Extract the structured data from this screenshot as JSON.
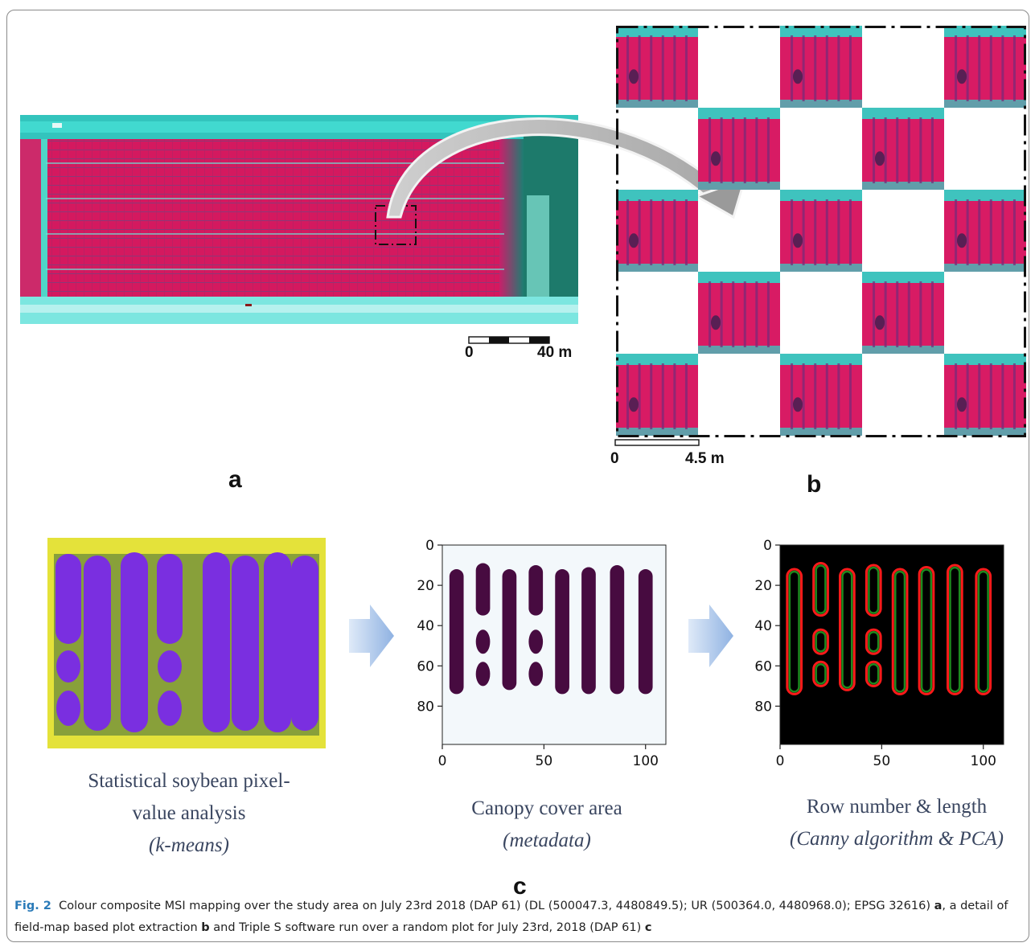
{
  "panels": {
    "a": {
      "letter": "a",
      "scale": {
        "zero": "0",
        "max": "40 m"
      }
    },
    "b": {
      "letter": "b",
      "scale": {
        "zero": "0",
        "max": "4.5 m"
      }
    },
    "c": {
      "letter": "c",
      "step1": {
        "line1": "Statistical soybean pixel-",
        "line2": "value analysis",
        "line3": "(k-means)"
      },
      "step2": {
        "line1": "Canopy cover area",
        "line2": "(metadata)"
      },
      "step3": {
        "line1": "Row number & length",
        "line2": "(Canny algorithm & PCA)"
      },
      "plot_axes": {
        "y_ticks": [
          "0",
          "20",
          "40",
          "60",
          "80"
        ],
        "x_ticks": [
          "0",
          "50",
          "100"
        ]
      }
    }
  },
  "caption": {
    "label": "Fig. 2",
    "text_1": "Colour composite MSI mapping over the study area on July 23rd 2018 (DAP 61) (DL (500047.3, 4480849.5); UR (500364.0, 4480968.0); EPSG 32616) ",
    "ref_a": "a",
    "text_2": ", a detail of field-map based plot extraction ",
    "ref_b": "b",
    "text_3": " and Triple S software run over a random plot for July 23rd, 2018 (DAP 61) ",
    "ref_c": "c"
  },
  "colors": {
    "canopy_magenta": "#d81b64",
    "soil_cyan": "#2fd6c8",
    "kmeans_purple": "#7a2fe0",
    "kmeans_yellow": "#e4e23a",
    "mask_fill": "#470b40",
    "mask_bg": "#f3f8fb",
    "edge_red": "#ff1a1a",
    "edge_green": "#1f8a1f",
    "arrow_blue": "#9dbce6"
  }
}
